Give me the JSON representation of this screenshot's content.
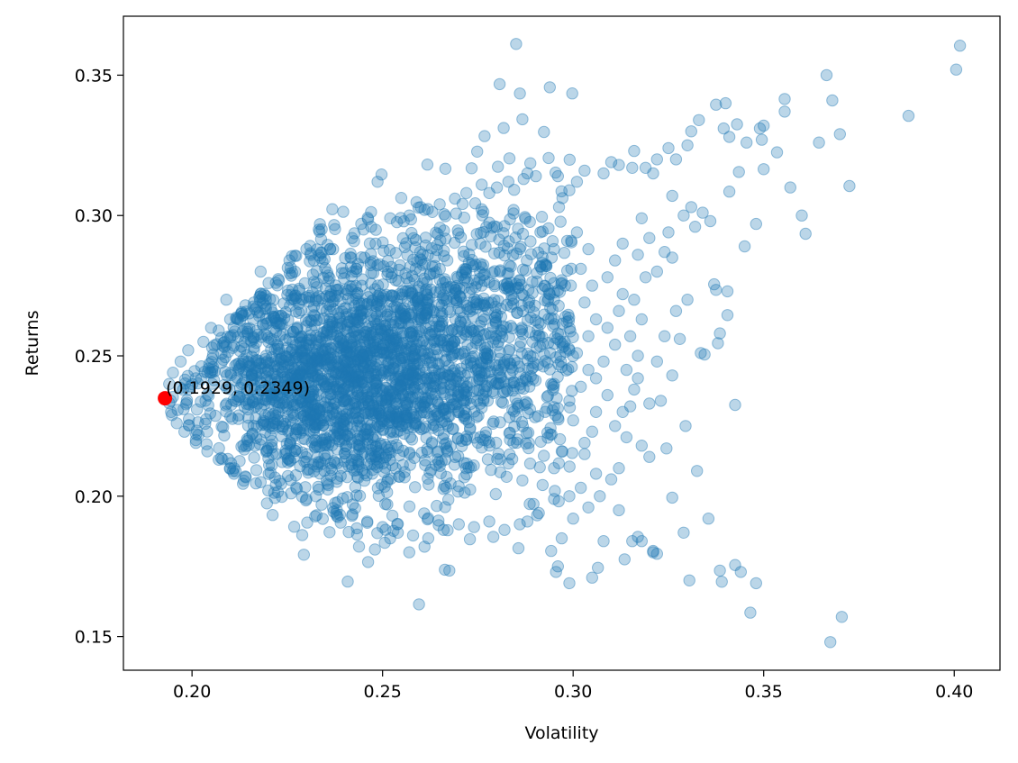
{
  "chart_data": {
    "type": "scatter",
    "title": "",
    "xlabel": "Volatility",
    "ylabel": "Returns",
    "xlim": [
      0.182,
      0.412
    ],
    "ylim": [
      0.138,
      0.371
    ],
    "xticks": [
      0.2,
      0.25,
      0.3,
      0.35,
      0.4
    ],
    "yticks": [
      0.15,
      0.2,
      0.25,
      0.3,
      0.35
    ],
    "xtick_labels": [
      "0.20",
      "0.25",
      "0.30",
      "0.35",
      "0.40"
    ],
    "ytick_labels": [
      "0.15",
      "0.20",
      "0.25",
      "0.30",
      "0.35"
    ],
    "grid": false,
    "legend": "none",
    "colors": {
      "points": "#1f77b4",
      "highlight": "#ff0000"
    },
    "series": [
      {
        "color": "#1f77b4",
        "alpha": 0.3,
        "points": [
          [
            0.3665,
            0.35
          ],
          [
            0.368,
            0.341
          ],
          [
            0.4015,
            0.3605
          ],
          [
            0.4005,
            0.352
          ],
          [
            0.37,
            0.329
          ],
          [
            0.388,
            0.3355
          ],
          [
            0.3725,
            0.3105
          ],
          [
            0.3645,
            0.326
          ],
          [
            0.357,
            0.31
          ],
          [
            0.36,
            0.3
          ],
          [
            0.361,
            0.2935
          ],
          [
            0.3555,
            0.3415
          ],
          [
            0.3555,
            0.337
          ],
          [
            0.3535,
            0.3225
          ],
          [
            0.35,
            0.332
          ],
          [
            0.349,
            0.331
          ],
          [
            0.3495,
            0.327
          ],
          [
            0.35,
            0.3165
          ],
          [
            0.3455,
            0.326
          ],
          [
            0.343,
            0.3325
          ],
          [
            0.34,
            0.34
          ],
          [
            0.3375,
            0.3395
          ],
          [
            0.341,
            0.328
          ],
          [
            0.3435,
            0.3155
          ],
          [
            0.341,
            0.3085
          ],
          [
            0.3395,
            0.331
          ],
          [
            0.348,
            0.297
          ],
          [
            0.345,
            0.289
          ],
          [
            0.337,
            0.2755
          ],
          [
            0.3375,
            0.2735
          ],
          [
            0.3405,
            0.273
          ],
          [
            0.3385,
            0.258
          ],
          [
            0.338,
            0.2545
          ],
          [
            0.3405,
            0.2645
          ],
          [
            0.3425,
            0.2325
          ],
          [
            0.3335,
            0.251
          ],
          [
            0.3345,
            0.2505
          ],
          [
            0.3325,
            0.209
          ],
          [
            0.3355,
            0.192
          ],
          [
            0.3305,
            0.17
          ],
          [
            0.3385,
            0.1735
          ],
          [
            0.339,
            0.1695
          ],
          [
            0.3425,
            0.1755
          ],
          [
            0.344,
            0.173
          ],
          [
            0.348,
            0.169
          ],
          [
            0.3465,
            0.1585
          ],
          [
            0.3675,
            0.148
          ],
          [
            0.3705,
            0.157
          ],
          [
            0.3295,
            0.225
          ],
          [
            0.329,
            0.187
          ],
          [
            0.326,
            0.1995
          ],
          [
            0.3245,
            0.217
          ],
          [
            0.322,
            0.1795
          ],
          [
            0.321,
            0.1805
          ],
          [
            0.318,
            0.184
          ],
          [
            0.3155,
            0.184
          ],
          [
            0.312,
            0.195
          ],
          [
            0.3065,
            0.1745
          ],
          [
            0.305,
            0.171
          ],
          [
            0.299,
            0.169
          ],
          [
            0.2955,
            0.173
          ],
          [
            0.296,
            0.175
          ],
          [
            0.308,
            0.184
          ],
          [
            0.3135,
            0.1775
          ],
          [
            0.317,
            0.1855
          ],
          [
            0.321,
            0.18
          ],
          [
            0.331,
            0.33
          ],
          [
            0.333,
            0.334
          ],
          [
            0.33,
            0.325
          ],
          [
            0.327,
            0.32
          ],
          [
            0.325,
            0.324
          ],
          [
            0.322,
            0.32
          ],
          [
            0.321,
            0.315
          ],
          [
            0.319,
            0.317
          ],
          [
            0.316,
            0.323
          ],
          [
            0.3155,
            0.317
          ],
          [
            0.312,
            0.318
          ],
          [
            0.31,
            0.319
          ],
          [
            0.308,
            0.315
          ],
          [
            0.303,
            0.316
          ],
          [
            0.301,
            0.312
          ],
          [
            0.299,
            0.309
          ],
          [
            0.296,
            0.314
          ],
          [
            0.326,
            0.307
          ],
          [
            0.329,
            0.3
          ],
          [
            0.331,
            0.303
          ],
          [
            0.334,
            0.301
          ],
          [
            0.336,
            0.298
          ],
          [
            0.332,
            0.296
          ],
          [
            0.325,
            0.294
          ],
          [
            0.324,
            0.287
          ],
          [
            0.322,
            0.28
          ],
          [
            0.326,
            0.285
          ],
          [
            0.33,
            0.27
          ],
          [
            0.328,
            0.256
          ],
          [
            0.327,
            0.266
          ],
          [
            0.324,
            0.257
          ],
          [
            0.322,
            0.248
          ],
          [
            0.326,
            0.243
          ],
          [
            0.323,
            0.234
          ],
          [
            0.32,
            0.233
          ],
          [
            0.317,
            0.242
          ],
          [
            0.315,
            0.232
          ],
          [
            0.314,
            0.221
          ],
          [
            0.318,
            0.218
          ],
          [
            0.32,
            0.214
          ],
          [
            0.312,
            0.21
          ],
          [
            0.31,
            0.206
          ],
          [
            0.307,
            0.2
          ],
          [
            0.304,
            0.196
          ],
          [
            0.3,
            0.192
          ],
          [
            0.297,
            0.185
          ],
          [
            0.313,
            0.29
          ],
          [
            0.311,
            0.284
          ],
          [
            0.309,
            0.278
          ],
          [
            0.313,
            0.272
          ],
          [
            0.312,
            0.266
          ],
          [
            0.309,
            0.26
          ],
          [
            0.311,
            0.254
          ],
          [
            0.308,
            0.248
          ],
          [
            0.306,
            0.242
          ],
          [
            0.309,
            0.236
          ],
          [
            0.306,
            0.23
          ],
          [
            0.305,
            0.223
          ],
          [
            0.303,
            0.215
          ],
          [
            0.306,
            0.208
          ],
          [
            0.302,
            0.203
          ],
          [
            0.299,
            0.2
          ],
          [
            0.295,
            0.288
          ],
          [
            0.293,
            0.282
          ],
          [
            0.297,
            0.276
          ],
          [
            0.295,
            0.27
          ],
          [
            0.298,
            0.264
          ],
          [
            0.296,
            0.258
          ],
          [
            0.299,
            0.252
          ],
          [
            0.297,
            0.246
          ],
          [
            0.295,
            0.24
          ],
          [
            0.299,
            0.234
          ],
          [
            0.296,
            0.228
          ],
          [
            0.294,
            0.222
          ],
          [
            0.297,
            0.216
          ],
          [
            0.295,
            0.21
          ],
          [
            0.292,
            0.204
          ],
          [
            0.295,
            0.199
          ],
          [
            0.291,
            0.194
          ],
          [
            0.288,
            0.191
          ],
          [
            0.301,
            0.294
          ],
          [
            0.304,
            0.288
          ],
          [
            0.302,
            0.281
          ],
          [
            0.305,
            0.275
          ],
          [
            0.303,
            0.269
          ],
          [
            0.306,
            0.263
          ],
          [
            0.304,
            0.257
          ],
          [
            0.301,
            0.251
          ],
          [
            0.304,
            0.245
          ],
          [
            0.302,
            0.239
          ],
          [
            0.3,
            0.227
          ],
          [
            0.303,
            0.219
          ],
          [
            0.318,
            0.299
          ],
          [
            0.32,
            0.292
          ],
          [
            0.317,
            0.286
          ],
          [
            0.319,
            0.278
          ],
          [
            0.316,
            0.27
          ],
          [
            0.318,
            0.263
          ],
          [
            0.315,
            0.257
          ],
          [
            0.317,
            0.25
          ],
          [
            0.314,
            0.245
          ],
          [
            0.316,
            0.238
          ],
          [
            0.313,
            0.23
          ],
          [
            0.311,
            0.225
          ],
          [
            0.287,
            0.313
          ],
          [
            0.283,
            0.312
          ],
          [
            0.28,
            0.31
          ],
          [
            0.276,
            0.311
          ],
          [
            0.272,
            0.308
          ],
          [
            0.269,
            0.306
          ],
          [
            0.265,
            0.304
          ],
          [
            0.261,
            0.302
          ],
          [
            0.257,
            0.3
          ],
          [
            0.252,
            0.299
          ],
          [
            0.247,
            0.296
          ],
          [
            0.242,
            0.292
          ],
          [
            0.237,
            0.288
          ],
          [
            0.232,
            0.284
          ],
          [
            0.227,
            0.28
          ],
          [
            0.222,
            0.276
          ],
          [
            0.218,
            0.272
          ],
          [
            0.214,
            0.268
          ],
          [
            0.21,
            0.263
          ],
          [
            0.207,
            0.259
          ],
          [
            0.203,
            0.255
          ],
          [
            0.199,
            0.252
          ],
          [
            0.197,
            0.248
          ],
          [
            0.195,
            0.244
          ],
          [
            0.194,
            0.24
          ],
          [
            0.1945,
            0.23
          ],
          [
            0.196,
            0.226
          ],
          [
            0.198,
            0.223
          ],
          [
            0.201,
            0.219
          ],
          [
            0.204,
            0.216
          ],
          [
            0.207,
            0.213
          ],
          [
            0.21,
            0.21
          ],
          [
            0.214,
            0.207
          ],
          [
            0.218,
            0.205
          ],
          [
            0.222,
            0.204
          ],
          [
            0.226,
            0.201
          ],
          [
            0.23,
            0.199
          ],
          [
            0.234,
            0.197
          ],
          [
            0.238,
            0.195
          ],
          [
            0.242,
            0.193
          ],
          [
            0.246,
            0.191
          ],
          [
            0.25,
            0.189
          ],
          [
            0.254,
            0.187
          ],
          [
            0.258,
            0.186
          ],
          [
            0.262,
            0.185
          ],
          [
            0.266,
            0.188
          ],
          [
            0.27,
            0.19
          ],
          [
            0.274,
            0.189
          ],
          [
            0.278,
            0.191
          ],
          [
            0.282,
            0.188
          ],
          [
            0.286,
            0.19
          ],
          [
            0.257,
            0.18
          ],
          [
            0.248,
            0.181
          ],
          [
            0.252,
            0.185
          ],
          [
            0.261,
            0.182
          ],
          [
            0.238,
            0.193
          ],
          [
            0.22,
            0.202
          ],
          [
            0.211,
            0.208
          ],
          [
            0.201,
            0.22
          ],
          [
            0.199,
            0.238
          ],
          [
            0.201,
            0.242
          ],
          [
            0.205,
            0.26
          ],
          [
            0.209,
            0.27
          ],
          [
            0.218,
            0.28
          ],
          [
            0.23,
            0.288
          ],
          [
            0.245,
            0.295
          ],
          [
            0.26,
            0.303
          ],
          [
            0.278,
            0.308
          ],
          [
            0.288,
            0.315
          ]
        ],
        "dense_core": [
          {
            "cx": 0.25,
            "cy": 0.245,
            "sx": 0.02,
            "sy": 0.024,
            "n": 1000
          },
          {
            "cx": 0.24,
            "cy": 0.24,
            "sx": 0.016,
            "sy": 0.02,
            "n": 700
          },
          {
            "cx": 0.265,
            "cy": 0.255,
            "sx": 0.018,
            "sy": 0.024,
            "n": 600
          },
          {
            "cx": 0.225,
            "cy": 0.242,
            "sx": 0.012,
            "sy": 0.016,
            "n": 400
          },
          {
            "cx": 0.29,
            "cy": 0.262,
            "sx": 0.012,
            "sy": 0.03,
            "n": 220
          }
        ]
      }
    ],
    "highlight": {
      "x": 0.1929,
      "y": 0.2349,
      "color": "#ff0000"
    },
    "annotations": [
      {
        "text": "(0.1929, 0.2349)",
        "x": 0.1929,
        "y": 0.2349
      }
    ]
  }
}
